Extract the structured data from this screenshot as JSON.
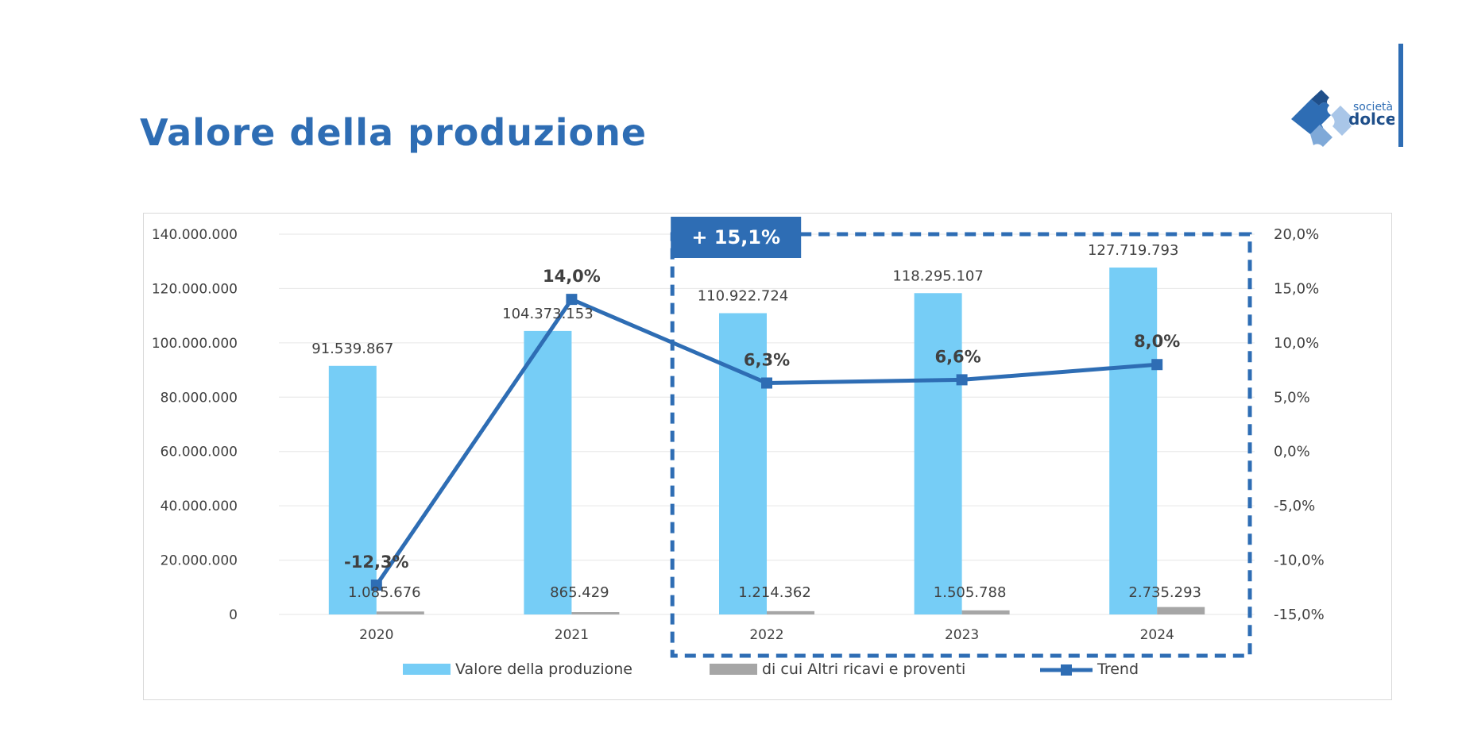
{
  "page": {
    "title": "Valore della produzione"
  },
  "logo": {
    "line1": "società",
    "line2": "dolce"
  },
  "colors": {
    "title": "#2e6db4",
    "bar_primary": "#76cdf6",
    "bar_secondary": "#a6a6a6",
    "trend": "#2e6db4",
    "highlight": "#2e6db4"
  },
  "chart_data": {
    "type": "bar",
    "categories": [
      "2020",
      "2021",
      "2022",
      "2023",
      "2024"
    ],
    "series": [
      {
        "name": "Valore della produzione",
        "type": "bar",
        "axis": "left",
        "values": [
          91539867,
          104373153,
          110922724,
          118295107,
          127719793
        ],
        "labels": [
          "91.539.867",
          "104.373.153",
          "110.922.724",
          "118.295.107",
          "127.719.793"
        ]
      },
      {
        "name": "di cui Altri ricavi e proventi",
        "type": "bar",
        "axis": "left",
        "values": [
          1085676,
          865429,
          1214362,
          1505788,
          2735293
        ],
        "labels": [
          "1.085.676",
          "865.429",
          "1.214.362",
          "1.505.788",
          "2.735.293"
        ]
      },
      {
        "name": "Trend",
        "type": "line",
        "axis": "right",
        "values": [
          -12.3,
          14.0,
          6.3,
          6.6,
          8.0
        ],
        "labels": [
          "-12,3%",
          "14,0%",
          "6,3%",
          "6,6%",
          "8,0%"
        ]
      }
    ],
    "y_left": {
      "min": 0,
      "max": 140000000,
      "ticks": [
        "0",
        "20.000.000",
        "40.000.000",
        "60.000.000",
        "80.000.000",
        "100.000.000",
        "120.000.000",
        "140.000.000"
      ]
    },
    "y_right": {
      "min": -15,
      "max": 20,
      "ticks": [
        "-15,0%",
        "-10,0%",
        "-5,0%",
        "0,0%",
        "5,0%",
        "10,0%",
        "15,0%",
        "20,0%"
      ]
    },
    "grid": true,
    "legend": "bottom",
    "highlight": {
      "label": "+ 15,1%",
      "from_category": "2022",
      "to_category": "2024"
    }
  }
}
